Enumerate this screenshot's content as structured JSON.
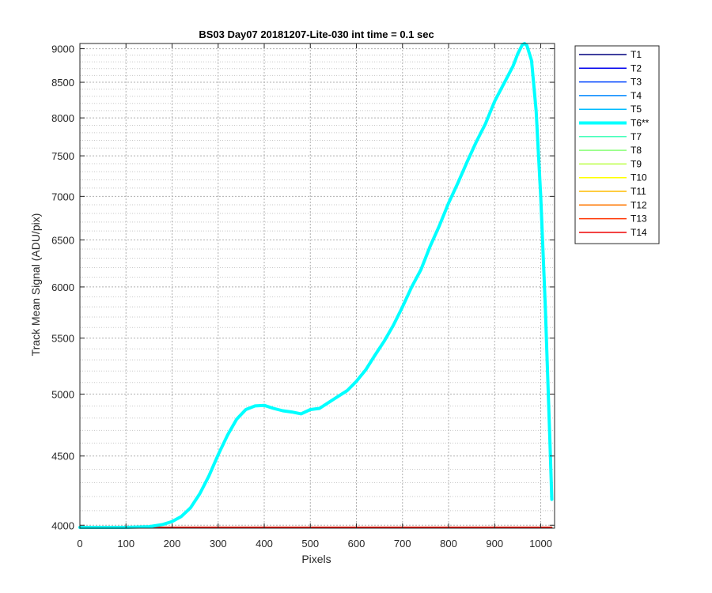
{
  "chart_data": {
    "type": "line",
    "title": "BS03 Day07 20181207-Lite-030 int time = 0.1 sec",
    "xlabel": "Pixels",
    "ylabel": "Track Mean Signal (ADU/pix)",
    "xlim": [
      0,
      1030
    ],
    "ylim": [
      3980,
      9080
    ],
    "yscale": "log",
    "grid": true,
    "legend_position": "outside-right",
    "x_ticks": [
      0,
      100,
      200,
      300,
      400,
      500,
      600,
      700,
      800,
      900,
      1000
    ],
    "y_ticks": [
      4000,
      4500,
      5000,
      5500,
      6000,
      6500,
      7000,
      7500,
      8000,
      8500,
      9000
    ],
    "series": [
      {
        "name": "T1",
        "color": "#00007F",
        "width": 1.5,
        "x": [
          0,
          1024
        ],
        "y": [
          3960,
          3960
        ]
      },
      {
        "name": "T2",
        "color": "#0000EE",
        "width": 1.5,
        "x": [
          0,
          1024
        ],
        "y": [
          3960,
          3960
        ]
      },
      {
        "name": "T3",
        "color": "#0044FF",
        "width": 1.5,
        "x": [
          0,
          1024
        ],
        "y": [
          3960,
          3960
        ]
      },
      {
        "name": "T4",
        "color": "#0088FF",
        "width": 1.5,
        "x": [
          0,
          1024
        ],
        "y": [
          3960,
          3960
        ]
      },
      {
        "name": "T5",
        "color": "#00BBFF",
        "width": 1.5,
        "x": [
          0,
          1024
        ],
        "y": [
          3960,
          3960
        ]
      },
      {
        "name": "T6**",
        "color": "#00FFFF",
        "width": 4,
        "x": [
          0,
          50,
          100,
          150,
          180,
          200,
          220,
          240,
          260,
          280,
          300,
          320,
          340,
          360,
          380,
          400,
          420,
          440,
          460,
          480,
          500,
          520,
          540,
          560,
          580,
          600,
          620,
          640,
          660,
          680,
          700,
          720,
          740,
          760,
          780,
          800,
          820,
          840,
          860,
          880,
          900,
          920,
          940,
          950,
          960,
          965,
          970,
          980,
          990,
          1000,
          1010,
          1020,
          1024
        ],
        "y": [
          3975,
          3980,
          3985,
          3990,
          4005,
          4025,
          4060,
          4120,
          4220,
          4350,
          4510,
          4660,
          4790,
          4870,
          4900,
          4905,
          4880,
          4860,
          4850,
          4835,
          4870,
          4880,
          4930,
          4980,
          5030,
          5110,
          5210,
          5340,
          5470,
          5620,
          5800,
          6000,
          6180,
          6430,
          6660,
          6920,
          7160,
          7420,
          7680,
          7920,
          8230,
          8480,
          8740,
          8920,
          9060,
          9080,
          9050,
          8820,
          8100,
          7000,
          5800,
          4600,
          4180
        ]
      },
      {
        "name": "T7",
        "color": "#44FFBB",
        "width": 1.5,
        "x": [
          0,
          1024
        ],
        "y": [
          3960,
          3960
        ]
      },
      {
        "name": "T8",
        "color": "#88FF77",
        "width": 1.5,
        "x": [
          0,
          1024
        ],
        "y": [
          3960,
          3960
        ]
      },
      {
        "name": "T9",
        "color": "#BBFF44",
        "width": 1.5,
        "x": [
          0,
          1024
        ],
        "y": [
          3960,
          3960
        ]
      },
      {
        "name": "T10",
        "color": "#FFFF00",
        "width": 1.5,
        "x": [
          0,
          1024
        ],
        "y": [
          3960,
          3960
        ]
      },
      {
        "name": "T11",
        "color": "#FFBB00",
        "width": 1.5,
        "x": [
          0,
          1024
        ],
        "y": [
          3960,
          3960
        ]
      },
      {
        "name": "T12",
        "color": "#FF7700",
        "width": 1.5,
        "x": [
          0,
          1024
        ],
        "y": [
          3960,
          3960
        ]
      },
      {
        "name": "T13",
        "color": "#FF3300",
        "width": 1.5,
        "x": [
          0,
          1024
        ],
        "y": [
          3960,
          3960
        ]
      },
      {
        "name": "T14",
        "color": "#EE0000",
        "width": 1.5,
        "x": [
          0,
          1024
        ],
        "y": [
          3960,
          3960
        ]
      }
    ]
  }
}
